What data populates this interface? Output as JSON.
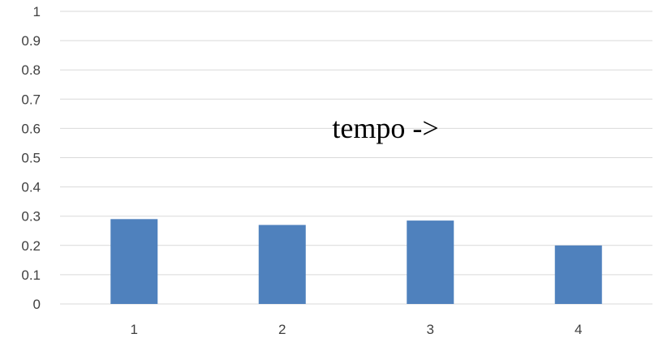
{
  "chart_data": {
    "type": "bar",
    "categories": [
      "1",
      "2",
      "3",
      "4"
    ],
    "values": [
      0.29,
      0.27,
      0.285,
      0.2
    ],
    "title": "",
    "xlabel": "",
    "ylabel": "",
    "ylim": [
      0,
      1
    ],
    "yticks": [
      "0",
      "0.1",
      "0.2",
      "0.3",
      "0.4",
      "0.5",
      "0.6",
      "0.7",
      "0.8",
      "0.9",
      "1"
    ],
    "grid": true,
    "legend": "none",
    "bar_color": "#4f81bd",
    "annotation": "tempo ->"
  }
}
